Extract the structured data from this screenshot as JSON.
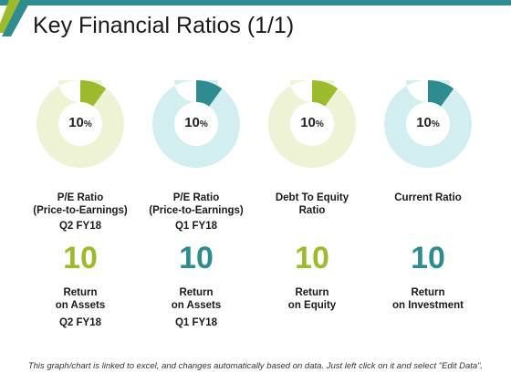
{
  "title": "Key Financial Ratios (1/1)",
  "colors": {
    "green": "#9cbb2c",
    "teal": "#2e8b8f",
    "green_track": "#eef3d6",
    "teal_track": "#d2eef1"
  },
  "chart_data": {
    "type": "pie",
    "items": [
      {
        "value": 10,
        "unit": "%",
        "color": "green",
        "label": "P/E Ratio (Price-to-Earnings)",
        "period": "Q2 FY18",
        "metric_value": "10",
        "metric_label": "Return on Assets",
        "metric_period": "Q2 FY18"
      },
      {
        "value": 10,
        "unit": "%",
        "color": "teal",
        "label": "P/E Ratio (Price-to-Earnings)",
        "period": "Q1 FY18",
        "metric_value": "10",
        "metric_label": "Return on Assets",
        "metric_period": "Q1 FY18"
      },
      {
        "value": 10,
        "unit": "%",
        "color": "green",
        "label": "Debt To Equity Ratio",
        "period": "",
        "metric_value": "10",
        "metric_label": "Return on Equity",
        "metric_period": ""
      },
      {
        "value": 10,
        "unit": "%",
        "color": "teal",
        "label": "Current Ratio",
        "period": "",
        "metric_value": "10",
        "metric_label": "Return on Investment",
        "metric_period": ""
      }
    ]
  },
  "labels": {
    "c0": {
      "line1": "P/E Ratio",
      "line2": "(Price-to-Earnings)",
      "metric1": "Return",
      "metric2": "on Assets"
    },
    "c1": {
      "line1": "P/E Ratio",
      "line2": "(Price-to-Earnings)",
      "metric1": "Return",
      "metric2": "on Assets"
    },
    "c2": {
      "line1": "Debt To Equity",
      "line2": "Ratio",
      "metric1": "Return",
      "metric2": "on Equity"
    },
    "c3": {
      "line1": "Current Ratio",
      "line2": "",
      "metric1": "Return",
      "metric2": "on Investment"
    }
  },
  "footer": "This graph/chart is linked to excel, and changes automatically based on data. Just left click on it and select \"Edit Data\"."
}
